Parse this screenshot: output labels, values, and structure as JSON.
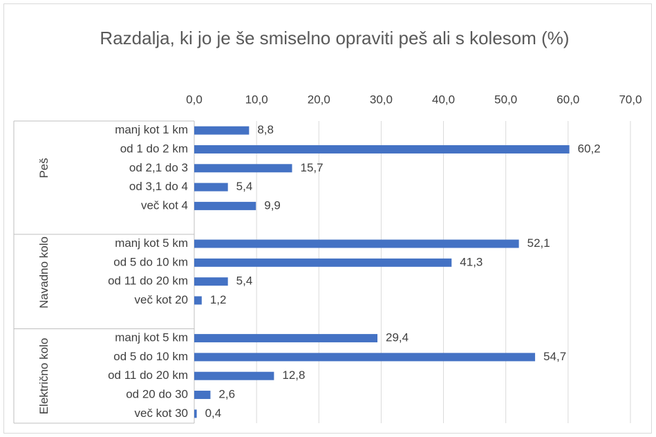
{
  "chart_data": {
    "type": "bar",
    "orientation": "horizontal",
    "title": "Razdalja, ki jo je še smiselno opraviti peš ali s kolesom (%)",
    "color": "#4472c4",
    "xlim": [
      0,
      70
    ],
    "xticks": [
      {
        "value": 0,
        "label": "0,0"
      },
      {
        "value": 10,
        "label": "10,0"
      },
      {
        "value": 20,
        "label": "20,0"
      },
      {
        "value": 30,
        "label": "30,0"
      },
      {
        "value": 40,
        "label": "40,0"
      },
      {
        "value": 50,
        "label": "50,0"
      },
      {
        "value": 60,
        "label": "60,0"
      },
      {
        "value": 70,
        "label": "70,0"
      }
    ],
    "grid": true,
    "groups": [
      {
        "name": "Peš",
        "categories": [
          "manj kot 1 km",
          "od 1 do 2 km",
          "od 2,1 do 3",
          "od 3,1 do 4",
          "več kot 4"
        ],
        "values": [
          8.8,
          60.2,
          15.7,
          5.4,
          9.9
        ],
        "value_labels": [
          "8,8",
          "60,2",
          "15,7",
          "5,4",
          "9,9"
        ]
      },
      {
        "name": "Navadno kolo",
        "categories": [
          "manj kot 5 km",
          "od 5 do 10 km",
          "od 11 do 20 km",
          "več kot 20"
        ],
        "values": [
          52.1,
          41.3,
          5.4,
          1.2
        ],
        "value_labels": [
          "52,1",
          "41,3",
          "5,4",
          "1,2"
        ]
      },
      {
        "name": "Električno kolo",
        "categories": [
          "manj kot 5 km",
          "od 5 do 10 km",
          "od 11 do 20 km",
          "od 20 do 30",
          "več kot 30"
        ],
        "values": [
          29.4,
          54.7,
          12.8,
          2.6,
          0.4
        ],
        "value_labels": [
          "29,4",
          "54,7",
          "12,8",
          "2,6",
          "0,4"
        ]
      }
    ]
  }
}
